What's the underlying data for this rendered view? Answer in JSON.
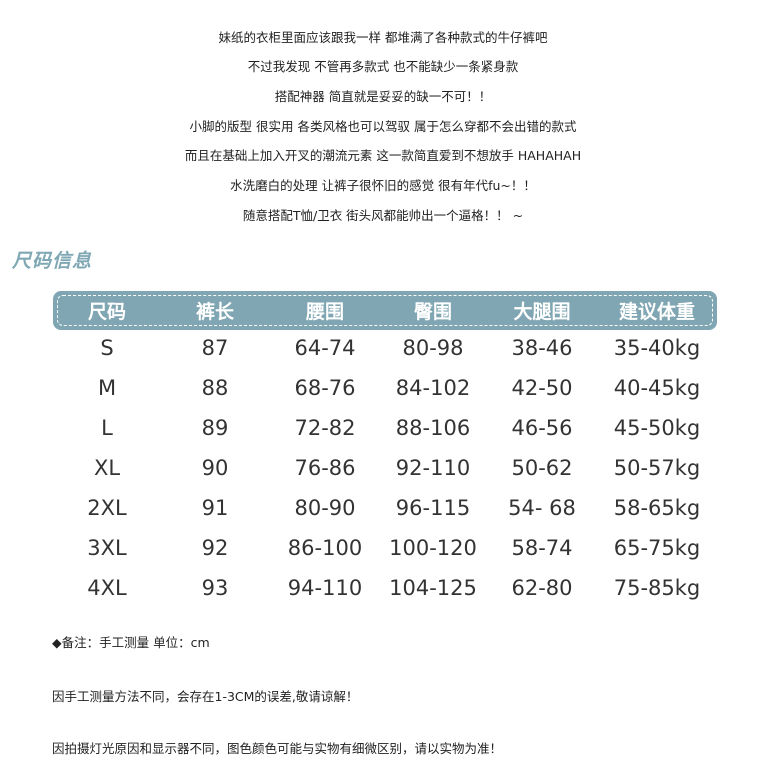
{
  "intro_lines": [
    "妹纸的衣柜里面应该跟我一样 都堆满了各种款式的牛仔裤吧",
    "不过我发现 不管再多款式 也不能缺少一条紧身款",
    "搭配神器 简直就是妥妥的缺一不可！！",
    "小脚的版型 很实用 各类风格也可以驾驭 属于怎么穿都不会出错的款式",
    "而且在基础上加入开叉的潮流元素 这一款简直爱到不想放手 HAHAHAH",
    "水洗磨白的处理 让裤子很怀旧的感觉 很有年代fu~！！",
    "随意搭配T恤/卫衣 街头风都能帅出一个逼格！！ ~"
  ],
  "section_title": "尺码信息",
  "accent_color": "#7fa6b2",
  "size_table": {
    "headers": [
      "尺码",
      "裤长",
      "腰围",
      "臀围",
      "大腿围",
      "建议体重"
    ],
    "rows": [
      [
        "S",
        "87",
        "64-74",
        "80-98",
        "38-46",
        "35-40kg"
      ],
      [
        "M",
        "88",
        "68-76",
        "84-102",
        "42-50",
        "40-45kg"
      ],
      [
        "L",
        "89",
        "72-82",
        "88-106",
        "46-56",
        "45-50kg"
      ],
      [
        "XL",
        "90",
        "76-86",
        "92-110",
        "50-62",
        "50-57kg"
      ],
      [
        "2XL",
        "91",
        "80-90",
        "96-115",
        "54- 68",
        "58-65kg"
      ],
      [
        "3XL",
        "92",
        "86-100",
        "100-120",
        "58-74",
        "65-75kg"
      ],
      [
        "4XL",
        "93",
        "94-110",
        "104-125",
        "62-80",
        "75-85kg"
      ]
    ]
  },
  "notes": [
    "◆备注：手工测量   单位：cm",
    "因手工测量方法不同，会存在1-3CM的误差,敬请谅解！",
    "因拍摄灯光原因和显示器不同，图色颜色可能与实物有细微区别，请以实物为准！"
  ]
}
